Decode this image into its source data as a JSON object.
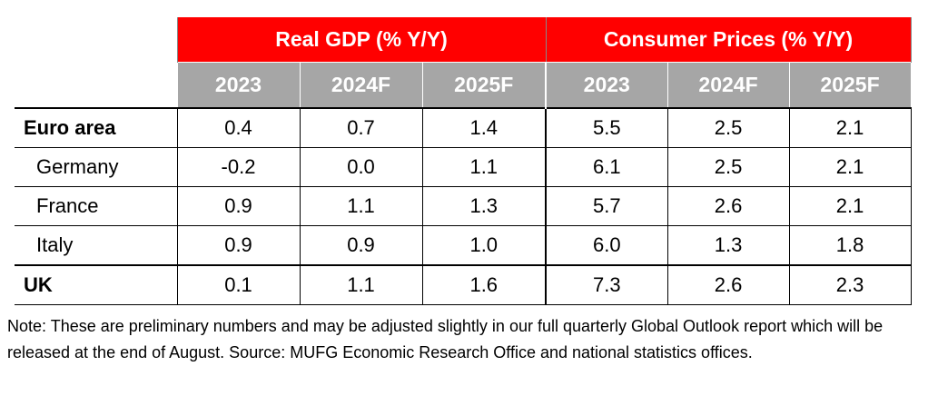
{
  "table": {
    "group_headers": [
      "Real GDP (% Y/Y)",
      "Consumer Prices (% Y/Y)"
    ],
    "year_headers": [
      "2023",
      "2024F",
      "2025F",
      "2023",
      "2024F",
      "2025F"
    ],
    "rows": [
      {
        "label": "Euro area",
        "values": [
          "0.4",
          "0.7",
          "1.4",
          "5.5",
          "2.5",
          "2.1"
        ]
      },
      {
        "label": "Germany",
        "values": [
          "-0.2",
          "0.0",
          "1.1",
          "6.1",
          "2.5",
          "2.1"
        ]
      },
      {
        "label": "France",
        "values": [
          "0.9",
          "1.1",
          "1.3",
          "5.7",
          "2.6",
          "2.1"
        ]
      },
      {
        "label": "Italy",
        "values": [
          "0.9",
          "0.9",
          "1.0",
          "6.0",
          "1.3",
          "1.8"
        ]
      },
      {
        "label": "UK",
        "values": [
          "0.1",
          "1.1",
          "1.6",
          "7.3",
          "2.6",
          "2.3"
        ]
      }
    ]
  },
  "note": "Note: These are preliminary numbers and may be adjusted slightly in our full quarterly Global Outlook report which will be released at the end of August. Source: MUFG Economic Research Office and national statistics offices.",
  "colors": {
    "header_red": "#ff0000",
    "header_gray": "#a6a6a6"
  }
}
